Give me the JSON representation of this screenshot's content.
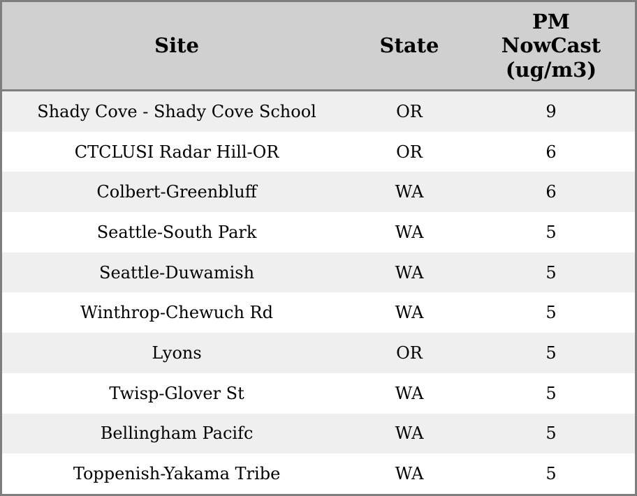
{
  "table": {
    "columns": [
      {
        "key": "site",
        "label": "Site"
      },
      {
        "key": "state",
        "label": "State"
      },
      {
        "key": "pm",
        "label": "PM NowCast (ug/m3)"
      }
    ],
    "rows": [
      {
        "site": "Shady Cove - Shady Cove School",
        "state": "OR",
        "pm": "9"
      },
      {
        "site": "CTCLUSI Radar Hill-OR",
        "state": "OR",
        "pm": "6"
      },
      {
        "site": "Colbert-Greenbluff",
        "state": "WA",
        "pm": "6"
      },
      {
        "site": "Seattle-South Park",
        "state": "WA",
        "pm": "5"
      },
      {
        "site": "Seattle-Duwamish",
        "state": "WA",
        "pm": "5"
      },
      {
        "site": "Winthrop-Chewuch Rd",
        "state": "WA",
        "pm": "5"
      },
      {
        "site": "Lyons",
        "state": "OR",
        "pm": "5"
      },
      {
        "site": "Twisp-Glover St",
        "state": "WA",
        "pm": "5"
      },
      {
        "site": "Bellingham Pacifc",
        "state": "WA",
        "pm": "5"
      },
      {
        "site": "Toppenish-Yakama Tribe",
        "state": "WA",
        "pm": "5"
      }
    ]
  },
  "colors": {
    "border": "#7e7e7e",
    "header_bg": "#d0d0d0",
    "row_alt_bg": "#efefef",
    "row_bg": "#ffffff",
    "text": "#000000"
  }
}
